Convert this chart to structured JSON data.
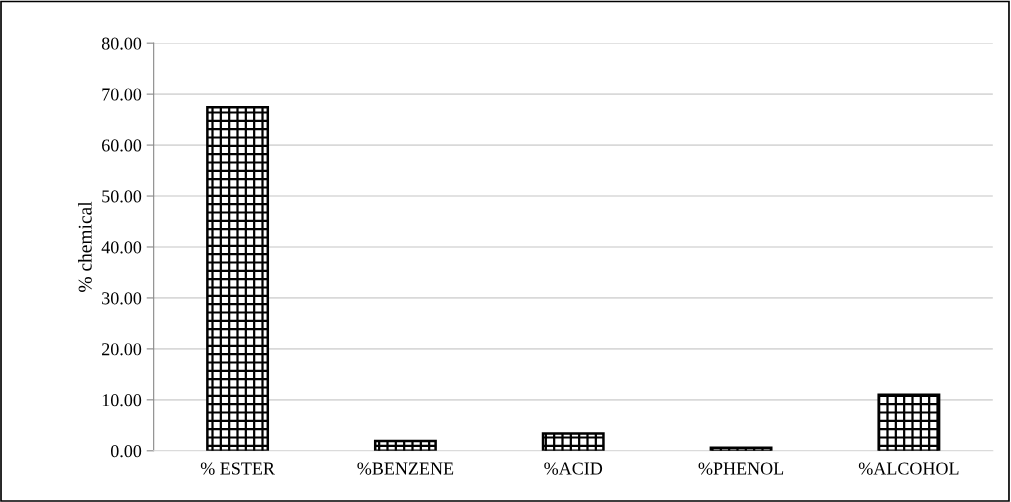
{
  "chart_data": {
    "type": "bar",
    "ylabel": "% chemical",
    "categories": [
      "% ESTER",
      "%BENZENE",
      "%ACID",
      "%PHENOL",
      "%ALCOHOL"
    ],
    "values": [
      67.4,
      1.9,
      3.4,
      0.6,
      11.0
    ],
    "color": "#000000",
    "ylim": [
      0,
      80
    ],
    "yticks": [
      {
        "value": 0,
        "label": "0.00"
      },
      {
        "value": 10,
        "label": "10.00"
      },
      {
        "value": 20,
        "label": "20.00"
      },
      {
        "value": 30,
        "label": "30.00"
      },
      {
        "value": 40,
        "label": "40.00"
      },
      {
        "value": 50,
        "label": "50.00"
      },
      {
        "value": 60,
        "label": "60.00"
      },
      {
        "value": 70,
        "label": "70.00"
      },
      {
        "value": 80,
        "label": "80.00"
      }
    ],
    "grid": "y"
  }
}
